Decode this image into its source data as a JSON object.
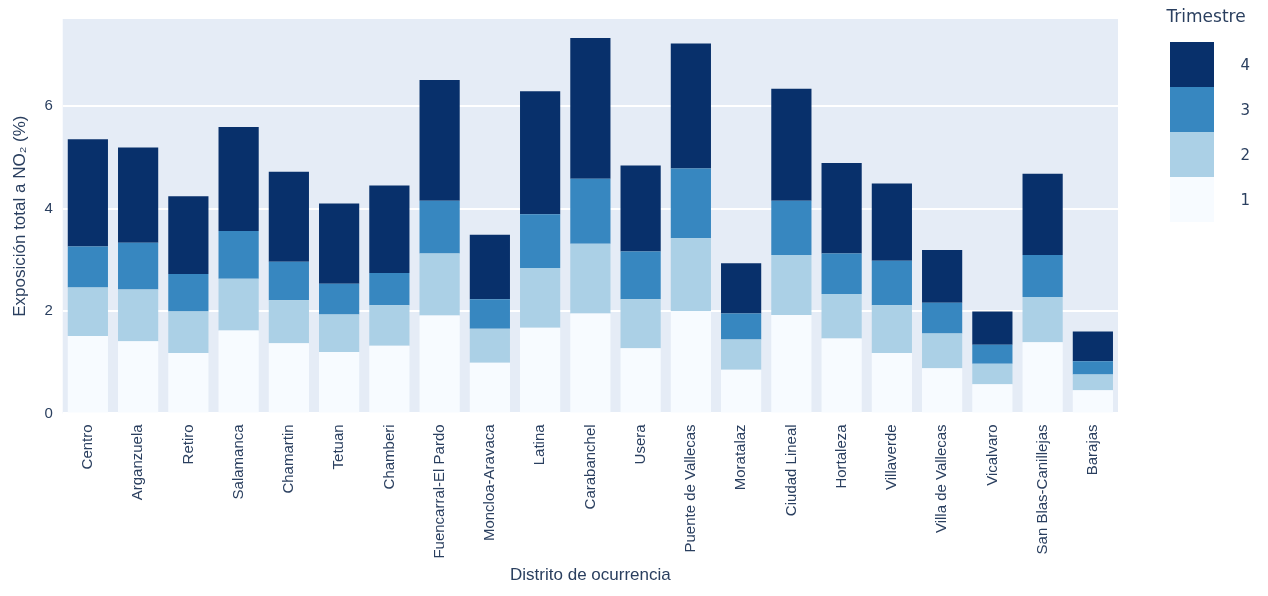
{
  "chart_data": {
    "type": "bar",
    "stacked": true,
    "xlabel": "Distrito de ocurrencia",
    "ylabel": "Exposición total a NO₂ (%)",
    "legend_title": "Trimestre",
    "categories": [
      "Centro",
      "Arganzuela",
      "Retiro",
      "Salamanca",
      "Chamartin",
      "Tetuan",
      "Chamberi",
      "Fuencarral-El Pardo",
      "Moncloa-Aravaca",
      "Latina",
      "Carabanchel",
      "Usera",
      "Puente de Vallecas",
      "Moratalaz",
      "Ciudad Lineal",
      "Hortaleza",
      "Villaverde",
      "Villa de Vallecas",
      "Vicalvaro",
      "San Blas-Canillejas",
      "Barajas"
    ],
    "series": [
      {
        "name": "1",
        "color": "#f7fbff",
        "values": [
          1.51,
          1.41,
          1.18,
          1.62,
          1.37,
          1.2,
          1.32,
          1.91,
          0.99,
          1.67,
          1.95,
          1.27,
          2.0,
          0.85,
          1.92,
          1.46,
          1.18,
          0.88,
          0.57,
          1.39,
          0.45
        ]
      },
      {
        "name": "2",
        "color": "#abd0e6",
        "values": [
          0.95,
          1.01,
          0.81,
          1.01,
          0.84,
          0.73,
          0.79,
          1.21,
          0.66,
          1.17,
          1.36,
          0.96,
          1.42,
          0.59,
          1.17,
          0.87,
          0.93,
          0.68,
          0.4,
          0.88,
          0.31
        ]
      },
      {
        "name": "3",
        "color": "#3787c0",
        "values": [
          0.8,
          0.91,
          0.73,
          0.93,
          0.75,
          0.6,
          0.63,
          1.03,
          0.58,
          1.05,
          1.27,
          0.93,
          1.36,
          0.51,
          1.06,
          0.79,
          0.87,
          0.6,
          0.37,
          0.82,
          0.26
        ]
      },
      {
        "name": "4",
        "color": "#08306b",
        "values": [
          2.09,
          1.86,
          1.52,
          2.03,
          1.76,
          1.57,
          1.71,
          2.36,
          1.26,
          2.4,
          2.75,
          1.68,
          2.44,
          0.98,
          2.19,
          1.77,
          1.51,
          1.03,
          0.65,
          1.59,
          0.58
        ]
      }
    ],
    "ylim": [
      0,
      7.7
    ],
    "yticks": [
      0,
      2,
      4,
      6
    ],
    "grid": "y",
    "legend": "top right"
  }
}
